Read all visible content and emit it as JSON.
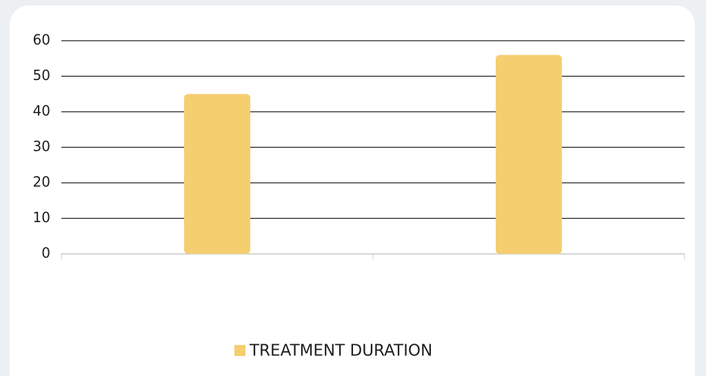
{
  "chart_data": {
    "type": "bar",
    "categories": [
      null,
      null
    ],
    "series": [
      {
        "name": "TREATMENT DURATION",
        "color": "#f5ce70",
        "values": [
          45,
          56
        ]
      }
    ],
    "ylim": [
      0,
      60
    ],
    "yticks": [
      0,
      10,
      20,
      30,
      40,
      50,
      60
    ],
    "grid": true,
    "legend": "bottom"
  }
}
